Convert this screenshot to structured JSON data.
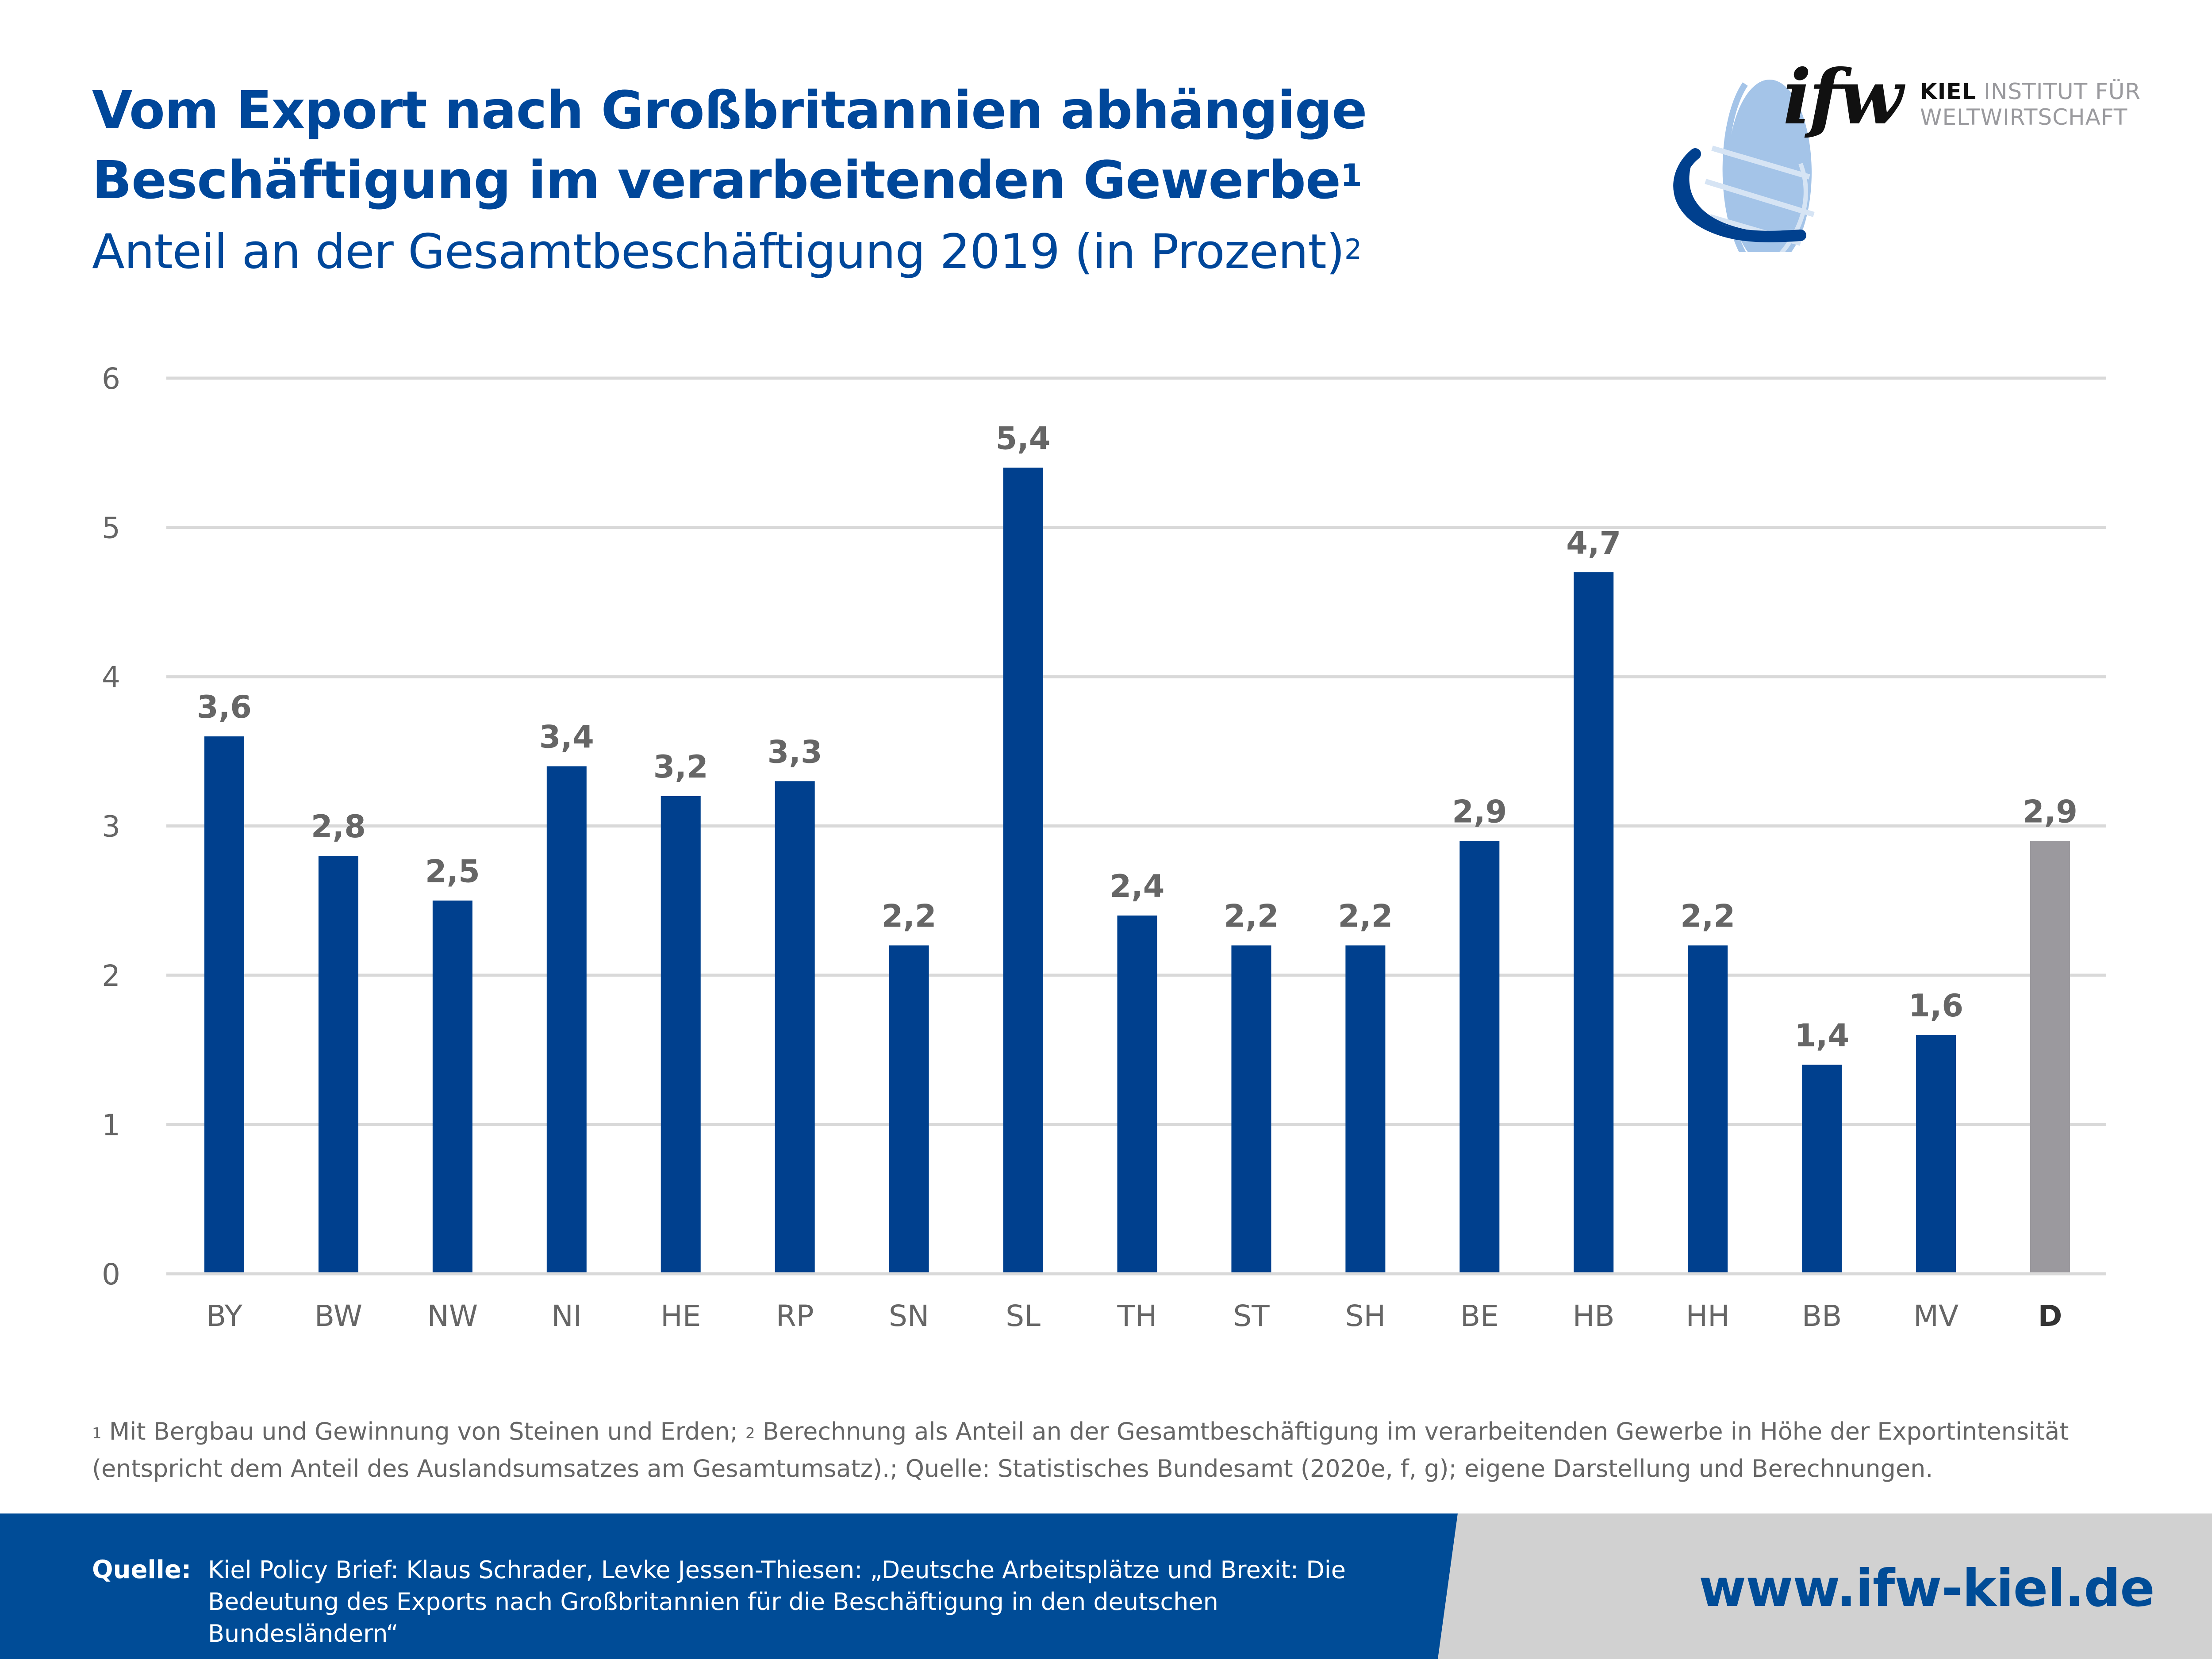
{
  "header": {
    "title_line1": "Vom Export nach Großbritannien abhängige",
    "title_line2": "Beschäftigung im verarbeitenden Gewerbe",
    "title_sup": "1",
    "subtitle": "Anteil an der Gesamtbeschäftigung 2019 (in Prozent)",
    "subtitle_sup": "2"
  },
  "logo": {
    "mark": "ifw",
    "name_bold": "KIEL",
    "name_line1_rest": " INSTITUT FÜR",
    "name_line2": "WELTWIRTSCHAFT",
    "icon": "globe-icon"
  },
  "colors": {
    "brand_blue": "#00479a",
    "bar_blue": "#00408e",
    "bar_highlight_grey": "#9b999e",
    "gridline": "#d9d9d9",
    "axis_text": "#666666",
    "footer_blue": "#004c97",
    "footer_grey": "#d1d1d1"
  },
  "chart_data": {
    "type": "bar",
    "title": "Vom Export nach Großbritannien abhängige Beschäftigung im verarbeitenden Gewerbe",
    "subtitle": "Anteil an der Gesamtbeschäftigung 2019 (in Prozent)",
    "xlabel": "",
    "ylabel": "",
    "ylim": [
      0,
      6
    ],
    "yticks": [
      "0",
      "1",
      "2",
      "3",
      "4",
      "5",
      "6"
    ],
    "grid": true,
    "categories": [
      "BY",
      "BW",
      "NW",
      "NI",
      "HE",
      "RP",
      "SN",
      "SL",
      "TH",
      "ST",
      "SH",
      "BE",
      "HB",
      "HH",
      "BB",
      "MV",
      "D"
    ],
    "values": [
      3.6,
      2.8,
      2.5,
      3.4,
      3.2,
      3.3,
      2.2,
      5.4,
      2.4,
      2.2,
      2.2,
      2.9,
      4.7,
      2.2,
      1.4,
      1.6,
      2.9
    ],
    "value_labels": [
      "3,6",
      "2,8",
      "2,5",
      "3,4",
      "3,2",
      "3,3",
      "2,2",
      "5,4",
      "2,4",
      "2,2",
      "2,2",
      "2,9",
      "4,7",
      "2,2",
      "1,4",
      "1,6",
      "2,9"
    ],
    "highlight_category": "D"
  },
  "footnote": {
    "sup1": "1",
    "text1": " Mit Bergbau und Gewinnung von Steinen und Erden; ",
    "sup2": "2",
    "text2": " Berechnung als Anteil an der Gesamtbeschäftigung im verarbeitenden Gewerbe in Höhe der Exportintensität (entspricht dem Anteil des Auslandsumsatzes am Gesamtumsatz).; Quelle: Statistisches Bundesamt (2020e, f, g); eigene Darstellung und Berechnungen."
  },
  "footer": {
    "source_label": "Quelle:",
    "source_text": "Kiel Policy Brief: Klaus Schrader, Levke Jessen-Thiesen: „Deutsche Arbeitsplätze und Brexit: Die Bedeutung des Exports nach Großbritannien für die Beschäftigung in den deutschen Bundesländern“",
    "url": "www.ifw-kiel.de"
  }
}
